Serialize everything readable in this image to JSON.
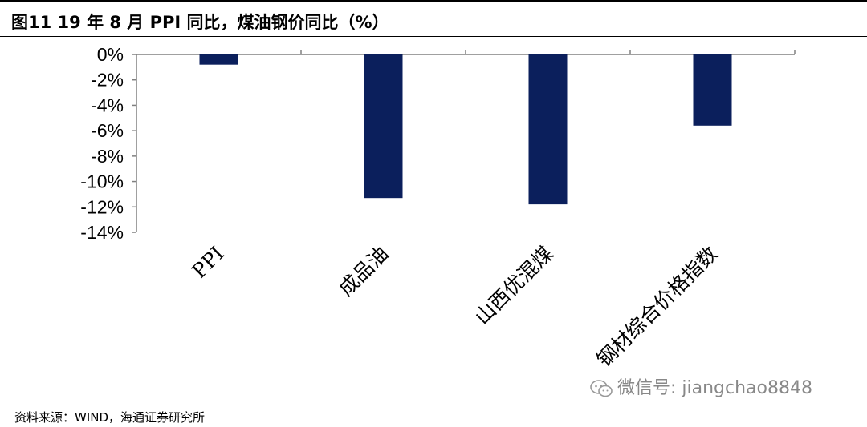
{
  "header": {
    "title": "图11 19 年 8 月 PPI 同比，煤油钢价同比（%）"
  },
  "footer": {
    "source": "资料来源：WIND，海通证券研究所"
  },
  "watermark": {
    "text": "微信号: jiangchao8848",
    "icon": "wechat-icon"
  },
  "colors": {
    "bar": "#0b1f5c",
    "axis": "#808080",
    "text": "#000000"
  },
  "chart_data": {
    "type": "bar",
    "title": "图11 19 年 8 月 PPI 同比，煤油钢价同比（%）",
    "categories": [
      "PPI",
      "成品油",
      "山西优混煤",
      "钢材综合价格指数"
    ],
    "values": [
      -0.8,
      -11.3,
      -11.8,
      -5.6
    ],
    "ylim": [
      -14,
      0
    ],
    "yticks": [
      0,
      -2,
      -4,
      -6,
      -8,
      -10,
      -12,
      -14
    ],
    "ytick_labels": [
      "0%",
      "-2%",
      "-4%",
      "-6%",
      "-8%",
      "-10%",
      "-12%",
      "-14%"
    ],
    "xlabel": "",
    "ylabel": "",
    "legend": "none",
    "grid": false
  }
}
